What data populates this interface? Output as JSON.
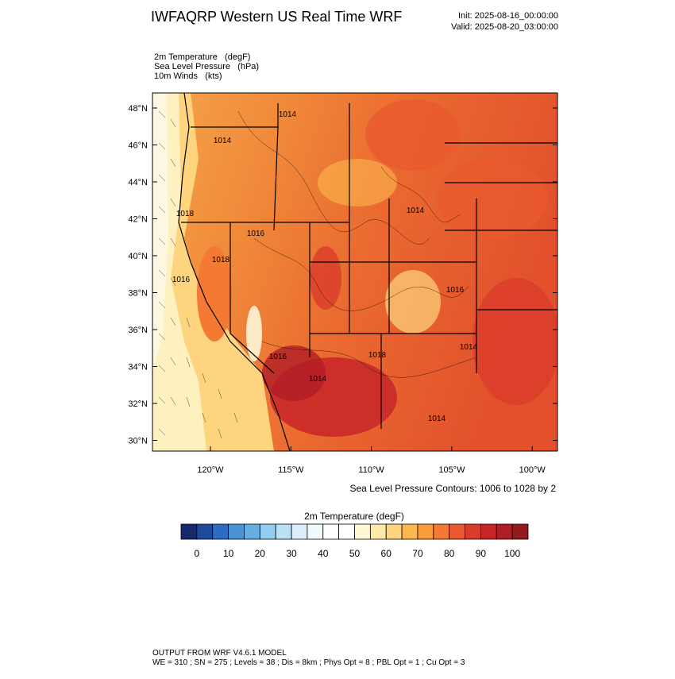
{
  "header": {
    "title": "IWFAQRP Western US Real Time WRF",
    "init": "Init: 2025-08-16_00:00:00",
    "valid": "Valid: 2025-08-20_03:00:00"
  },
  "fields": [
    "2m Temperature   (degF)",
    "Sea Level Pressure   (hPa)",
    "10m Winds   (kts)"
  ],
  "map": {
    "lat_labels": [
      "48°N",
      "46°N",
      "44°N",
      "42°N",
      "40°N",
      "38°N",
      "36°N",
      "34°N",
      "32°N",
      "30°N"
    ],
    "lon_labels": [
      "120°W",
      "115°W",
      "110°W",
      "105°W",
      "100°W"
    ],
    "contour_labels": [
      "1014",
      "1014",
      "1018",
      "1016",
      "1016",
      "1018",
      "1014",
      "1016",
      "1014",
      "1018",
      "1016",
      "1014",
      "1014"
    ],
    "contour_note": "Sea Level Pressure Contours: 1006 to 1028 by 2"
  },
  "colorbar": {
    "title": "2m Temperature  (degF)",
    "lim": [
      -5,
      105
    ],
    "ticks": [
      0,
      10,
      20,
      30,
      40,
      50,
      60,
      70,
      80,
      90,
      100
    ],
    "colors": [
      "#16296a",
      "#1f4a9a",
      "#2d6cc0",
      "#4b93d4",
      "#66ade2",
      "#93cdf0",
      "#b9e2f7",
      "#daeff9",
      "#f1f9fc",
      "#ffffff",
      "#ffffff",
      "#fff6d6",
      "#feeaa8",
      "#fed57e",
      "#fcb84f",
      "#f99c3c",
      "#f47a33",
      "#ea5a2e",
      "#db3c2a",
      "#c72628",
      "#b01d26",
      "#921a1c"
    ]
  },
  "footer": {
    "line1": "OUTPUT FROM WRF V4.6.1 MODEL",
    "line2": "WE = 310 ; SN = 275 ; Levels = 38 ; Dis = 8km ; Phys Opt = 8 ; PBL Opt = 1 ; Cu Opt = 3"
  }
}
